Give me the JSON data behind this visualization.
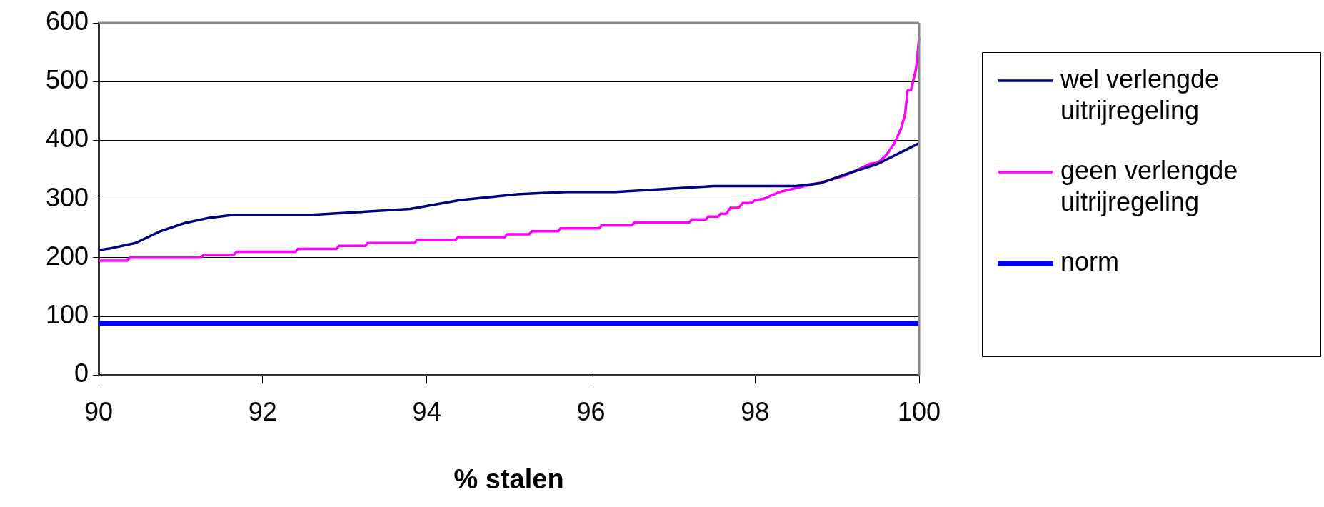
{
  "chart_data": {
    "type": "line",
    "xlabel": "% stalen",
    "xlim": [
      90,
      100
    ],
    "xticks": [
      90,
      92,
      94,
      96,
      98,
      100
    ],
    "ylim": [
      0,
      600
    ],
    "yticks": [
      0,
      100,
      200,
      300,
      400,
      500,
      600
    ],
    "grid": "y",
    "legend": "right",
    "marker": "none",
    "line_style": "solid",
    "series": [
      {
        "name": "wel verlengde uitrijregeling",
        "color": "#000080",
        "x": [
          90,
          90.15,
          90.45,
          90.75,
          91.05,
          91.35,
          91.65,
          92.6,
          93.8,
          94.4,
          95.1,
          95.7,
          96.3,
          97.5,
          98.5,
          98.8,
          99.1,
          99.5,
          100
        ],
        "values": [
          213,
          216,
          225,
          245,
          259,
          268,
          273,
          273,
          283,
          298,
          308,
          312,
          312,
          322,
          322,
          327,
          342,
          360,
          395
        ]
      },
      {
        "name": "geen verlengde uitrijregeling",
        "color": "#ff00ff",
        "x": [
          90,
          90.35,
          90.38,
          91.25,
          91.28,
          91.65,
          91.68,
          92.4,
          92.43,
          92.9,
          92.93,
          93.25,
          93.28,
          93.85,
          93.88,
          94.35,
          94.38,
          94.95,
          94.98,
          95.25,
          95.28,
          95.6,
          95.63,
          96.1,
          96.13,
          96.5,
          96.53,
          97.2,
          97.23,
          97.4,
          97.43,
          97.55,
          97.58,
          97.65,
          97.7,
          97.8,
          97.85,
          97.95,
          98,
          98.1,
          98.3,
          98.55,
          98.8,
          99.1,
          99.4,
          99.5,
          99.6,
          99.7,
          99.78,
          99.83,
          99.86,
          99.9,
          99.96,
          99.97,
          99.99,
          100
        ],
        "values": [
          195,
          195,
          200,
          200,
          205,
          205,
          210,
          210,
          215,
          215,
          220,
          220,
          225,
          225,
          230,
          230,
          235,
          235,
          240,
          240,
          245,
          245,
          250,
          250,
          255,
          255,
          260,
          260,
          265,
          265,
          270,
          270,
          275,
          275,
          285,
          285,
          293,
          293,
          298,
          300,
          312,
          320,
          328,
          340,
          360,
          362,
          375,
          395,
          420,
          445,
          485,
          485,
          520,
          530,
          560,
          575
        ]
      },
      {
        "name": "norm",
        "color": "#0000ff",
        "x": [
          90,
          100
        ],
        "values": [
          88,
          88
        ]
      }
    ]
  }
}
